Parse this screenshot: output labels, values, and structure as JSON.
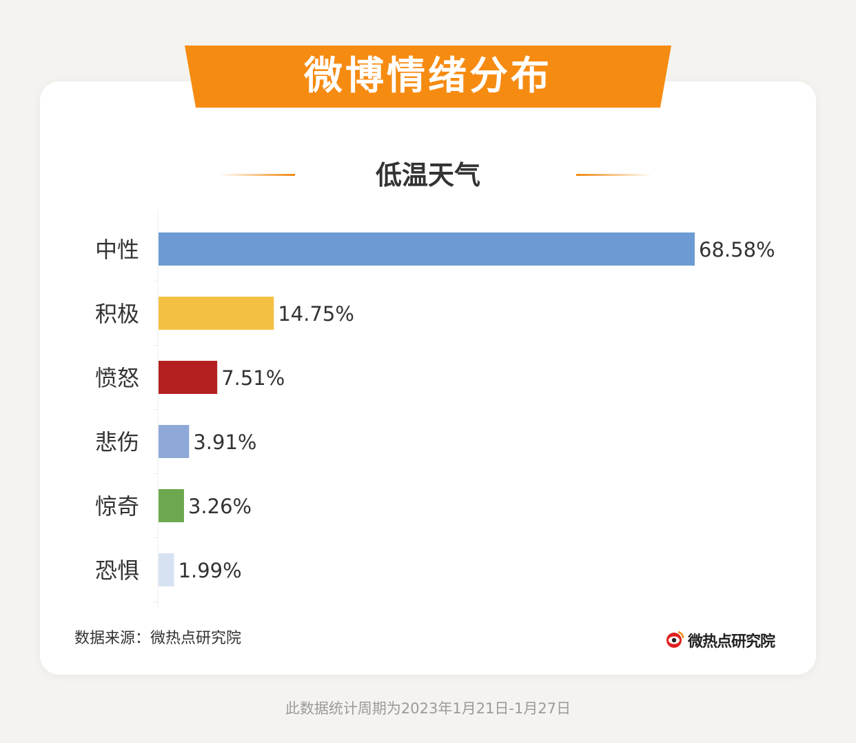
{
  "banner": {
    "title": "微博情绪分布"
  },
  "colors": {
    "accent": "#f68b12",
    "card": "#ffffff",
    "background": "#f5f3ef"
  },
  "chart_data": {
    "type": "bar",
    "orientation": "horizontal",
    "title": "低温天气",
    "categories": [
      "中性",
      "积极",
      "愤怒",
      "悲伤",
      "惊奇",
      "恐惧"
    ],
    "values": [
      68.58,
      14.75,
      7.51,
      3.91,
      3.26,
      1.99
    ],
    "value_labels": [
      "68.58%",
      "14.75%",
      "7.51%",
      "3.91%",
      "3.26%",
      "1.99%"
    ],
    "colors": [
      "#6b9bd2",
      "#f4c043",
      "#b3201f",
      "#8ea8d8",
      "#6ea84e",
      "#d6e2f2"
    ],
    "xlim": [
      0,
      68.58
    ],
    "grid": false,
    "legend": "none"
  },
  "source": {
    "text": "数据来源：微热点研究院"
  },
  "logo": {
    "icon": "weibo-eye-icon",
    "text": "微热点研究院"
  },
  "footer": {
    "text": "此数据统计周期为2023年1月21日-1月27日"
  }
}
